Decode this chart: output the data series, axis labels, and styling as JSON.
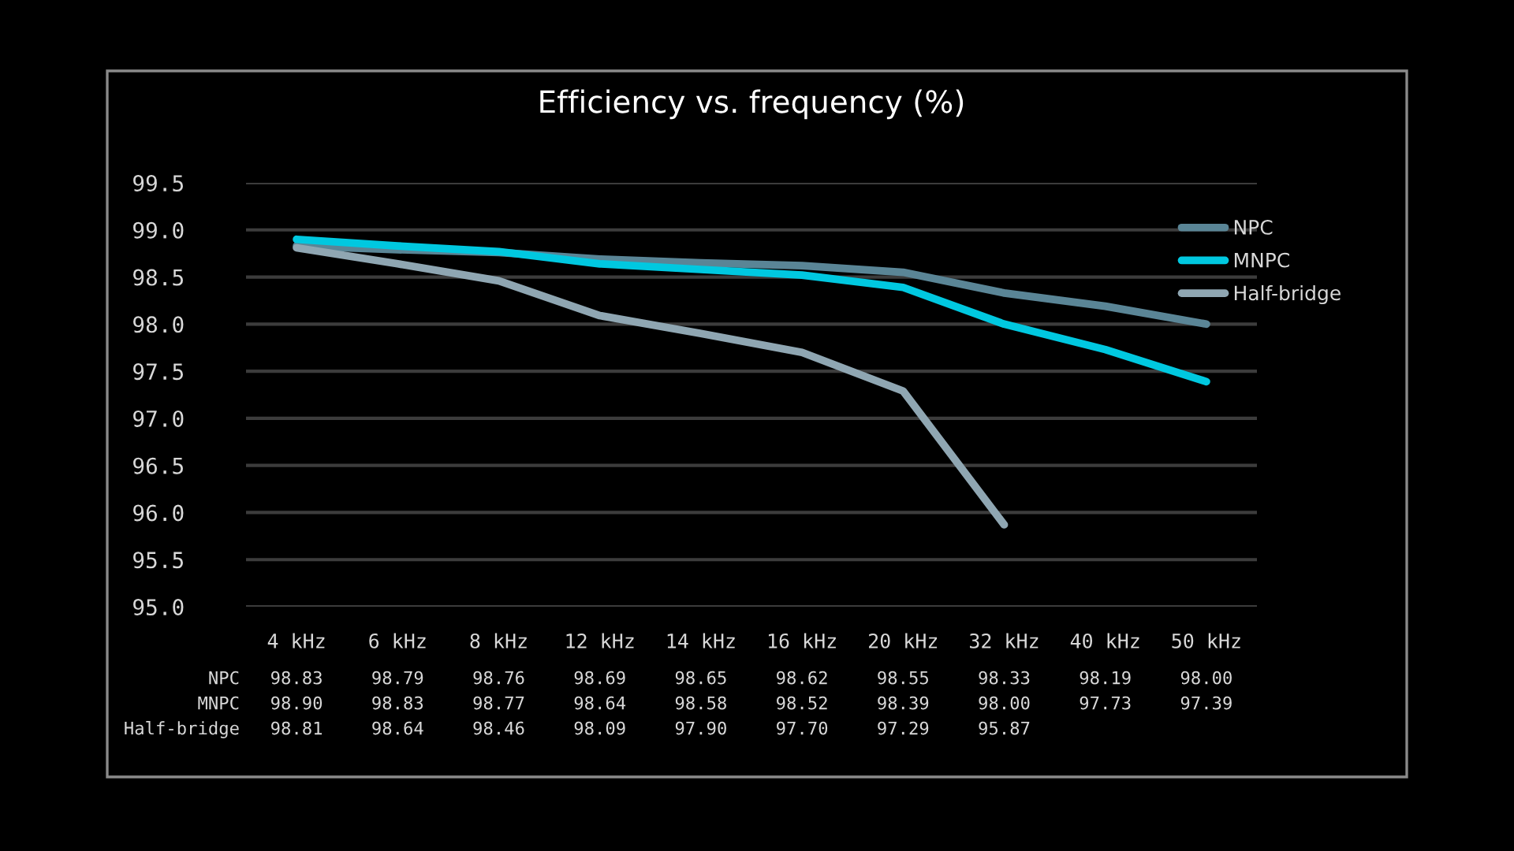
{
  "chart_data": {
    "type": "line",
    "title": "Efficiency vs. frequency (%)",
    "categories": [
      "4 kHz",
      "6 kHz",
      "8 kHz",
      "12 kHz",
      "14 kHz",
      "16 kHz",
      "20 kHz",
      "32 kHz",
      "40 kHz",
      "50 kHz"
    ],
    "series": [
      {
        "name": "NPC",
        "color": "#5a8596",
        "values": [
          98.83,
          98.79,
          98.76,
          98.69,
          98.65,
          98.62,
          98.55,
          98.33,
          98.19,
          98.0
        ],
        "value_labels": [
          "98.83",
          "98.79",
          "98.76",
          "98.69",
          "98.65",
          "98.62",
          "98.55",
          "98.33",
          "98.19",
          "98.00"
        ]
      },
      {
        "name": "MNPC",
        "color": "#00c8e0",
        "values": [
          98.9,
          98.83,
          98.77,
          98.64,
          98.58,
          98.52,
          98.39,
          98.0,
          97.73,
          97.39
        ],
        "value_labels": [
          "98.90",
          "98.83",
          "98.77",
          "98.64",
          "98.58",
          "98.52",
          "98.39",
          "98.00",
          "97.73",
          "97.39"
        ]
      },
      {
        "name": "Half-bridge",
        "color": "#8fa6b2",
        "values": [
          98.81,
          98.64,
          98.46,
          98.09,
          97.9,
          97.7,
          97.29,
          95.87,
          null,
          null
        ],
        "value_labels": [
          "98.81",
          "98.64",
          "98.46",
          "98.09",
          "97.90",
          "97.70",
          "97.29",
          "95.87",
          null,
          null
        ]
      }
    ],
    "ylim": [
      95,
      99.5
    ],
    "yticks": [
      {
        "value": 95,
        "label": "95.0"
      },
      95.5,
      {
        "value": 96,
        "label": "96.0"
      },
      96.5,
      {
        "value": 97,
        "label": "97.0"
      },
      97.5,
      {
        "value": 98,
        "label": "98.0"
      },
      98.5,
      {
        "value": 99,
        "label": "99.0"
      },
      99.5
    ],
    "grid": "y",
    "legend": "top right",
    "marker": "none",
    "line_style": "solid"
  }
}
